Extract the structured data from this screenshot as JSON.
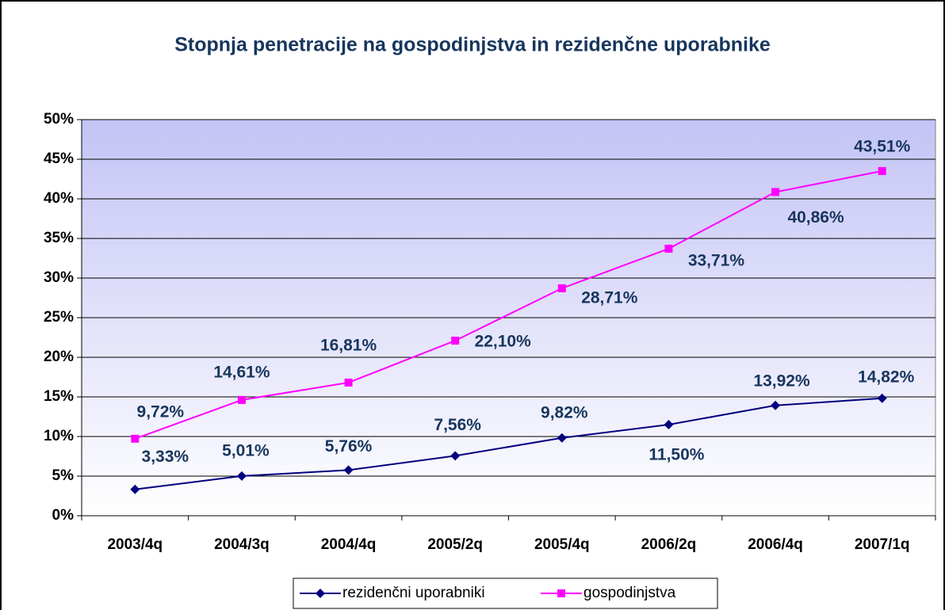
{
  "chart_data": {
    "type": "line",
    "title": "Stopnja penetracije na gospodinjstva in rezidenčne uporabnike",
    "categories": [
      "2003/4q",
      "2004/3q",
      "2004/4q",
      "2005/2q",
      "2005/4q",
      "2006/2q",
      "2006/4q",
      "2007/1q"
    ],
    "series": [
      {
        "name": "rezidenčni uporabniki",
        "color": "#000080",
        "marker": "diamond",
        "values": [
          3.33,
          5.01,
          5.76,
          7.56,
          9.82,
          11.5,
          13.92,
          14.82
        ],
        "value_labels": [
          "3,33%",
          "5,01%",
          "5,76%",
          "7,56%",
          "9,82%",
          "11,50%",
          "13,92%",
          "14,82%"
        ]
      },
      {
        "name": "gospodinjstva",
        "color": "#ff00ff",
        "marker": "square",
        "values": [
          9.72,
          14.61,
          16.81,
          22.1,
          28.71,
          33.71,
          40.86,
          43.51
        ],
        "value_labels": [
          "9,72%",
          "14,61%",
          "16,81%",
          "22,10%",
          "28,71%",
          "33,71%",
          "40,86%",
          "43,51%"
        ]
      }
    ],
    "ylim": [
      0,
      50
    ],
    "yticks": [
      {
        "value": 0,
        "label": "0%"
      },
      {
        "value": 5,
        "label": "5%"
      },
      {
        "value": 10,
        "label": "10%"
      },
      {
        "value": 15,
        "label": "15%"
      },
      {
        "value": 20,
        "label": "20%"
      },
      {
        "value": 25,
        "label": "25%"
      },
      {
        "value": 30,
        "label": "30%"
      },
      {
        "value": 35,
        "label": "35%"
      },
      {
        "value": 40,
        "label": "40%"
      },
      {
        "value": 45,
        "label": "45%"
      },
      {
        "value": 50,
        "label": "50%"
      }
    ],
    "grid": true,
    "legend": "bottom"
  }
}
